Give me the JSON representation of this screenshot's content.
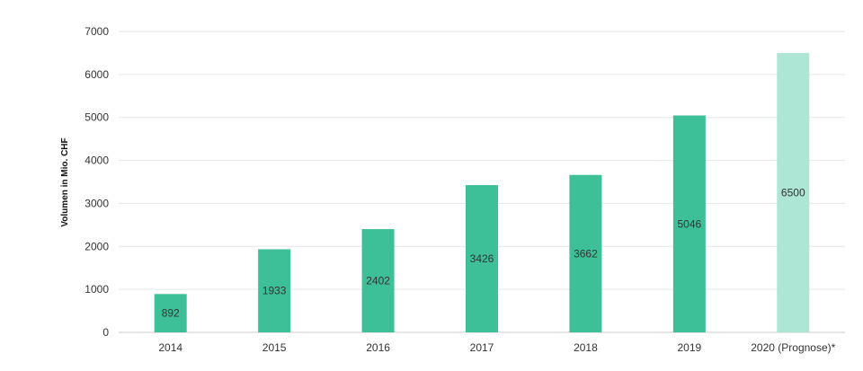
{
  "chart_data": {
    "type": "bar",
    "title": "",
    "xlabel": "",
    "ylabel": "Volumen in Mio. CHF",
    "categories": [
      "2014",
      "2015",
      "2016",
      "2017",
      "2018",
      "2019",
      "2020 (Prognose)*"
    ],
    "values": [
      892,
      1933,
      2402,
      3426,
      3662,
      5046,
      6500
    ],
    "data_labels": [
      "892",
      "1933",
      "2402",
      "3426",
      "3662",
      "5046",
      "6500"
    ],
    "ylim": [
      0,
      7000
    ],
    "yticks": [
      0,
      1000,
      2000,
      3000,
      4000,
      5000,
      6000,
      7000
    ],
    "grid": true,
    "legend": "none",
    "colors": {
      "bar": "#3dbf97",
      "forecast_bar": "#aee6d5",
      "grid": "#e6e6e6",
      "text": "#333333"
    }
  }
}
